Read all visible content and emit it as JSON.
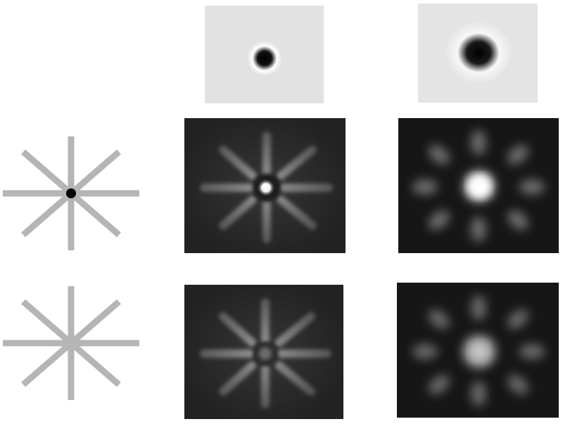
{
  "figure": {
    "background_color": "#ffffff",
    "kernel_background_color": "#e2e2e2",
    "response_background_color": "#2b2b2b",
    "star_color": "#b5b5b5",
    "center_dot_color": "#000000",
    "kernels": [
      {
        "name": "small-kernel",
        "description_icon": "gaussian-dot-icon"
      },
      {
        "name": "large-kernel",
        "description_icon": "gaussian-dot-icon"
      }
    ],
    "inputs": [
      {
        "name": "star-with-dark-center",
        "spokes": 8
      },
      {
        "name": "star-plain",
        "spokes": 8
      }
    ]
  }
}
